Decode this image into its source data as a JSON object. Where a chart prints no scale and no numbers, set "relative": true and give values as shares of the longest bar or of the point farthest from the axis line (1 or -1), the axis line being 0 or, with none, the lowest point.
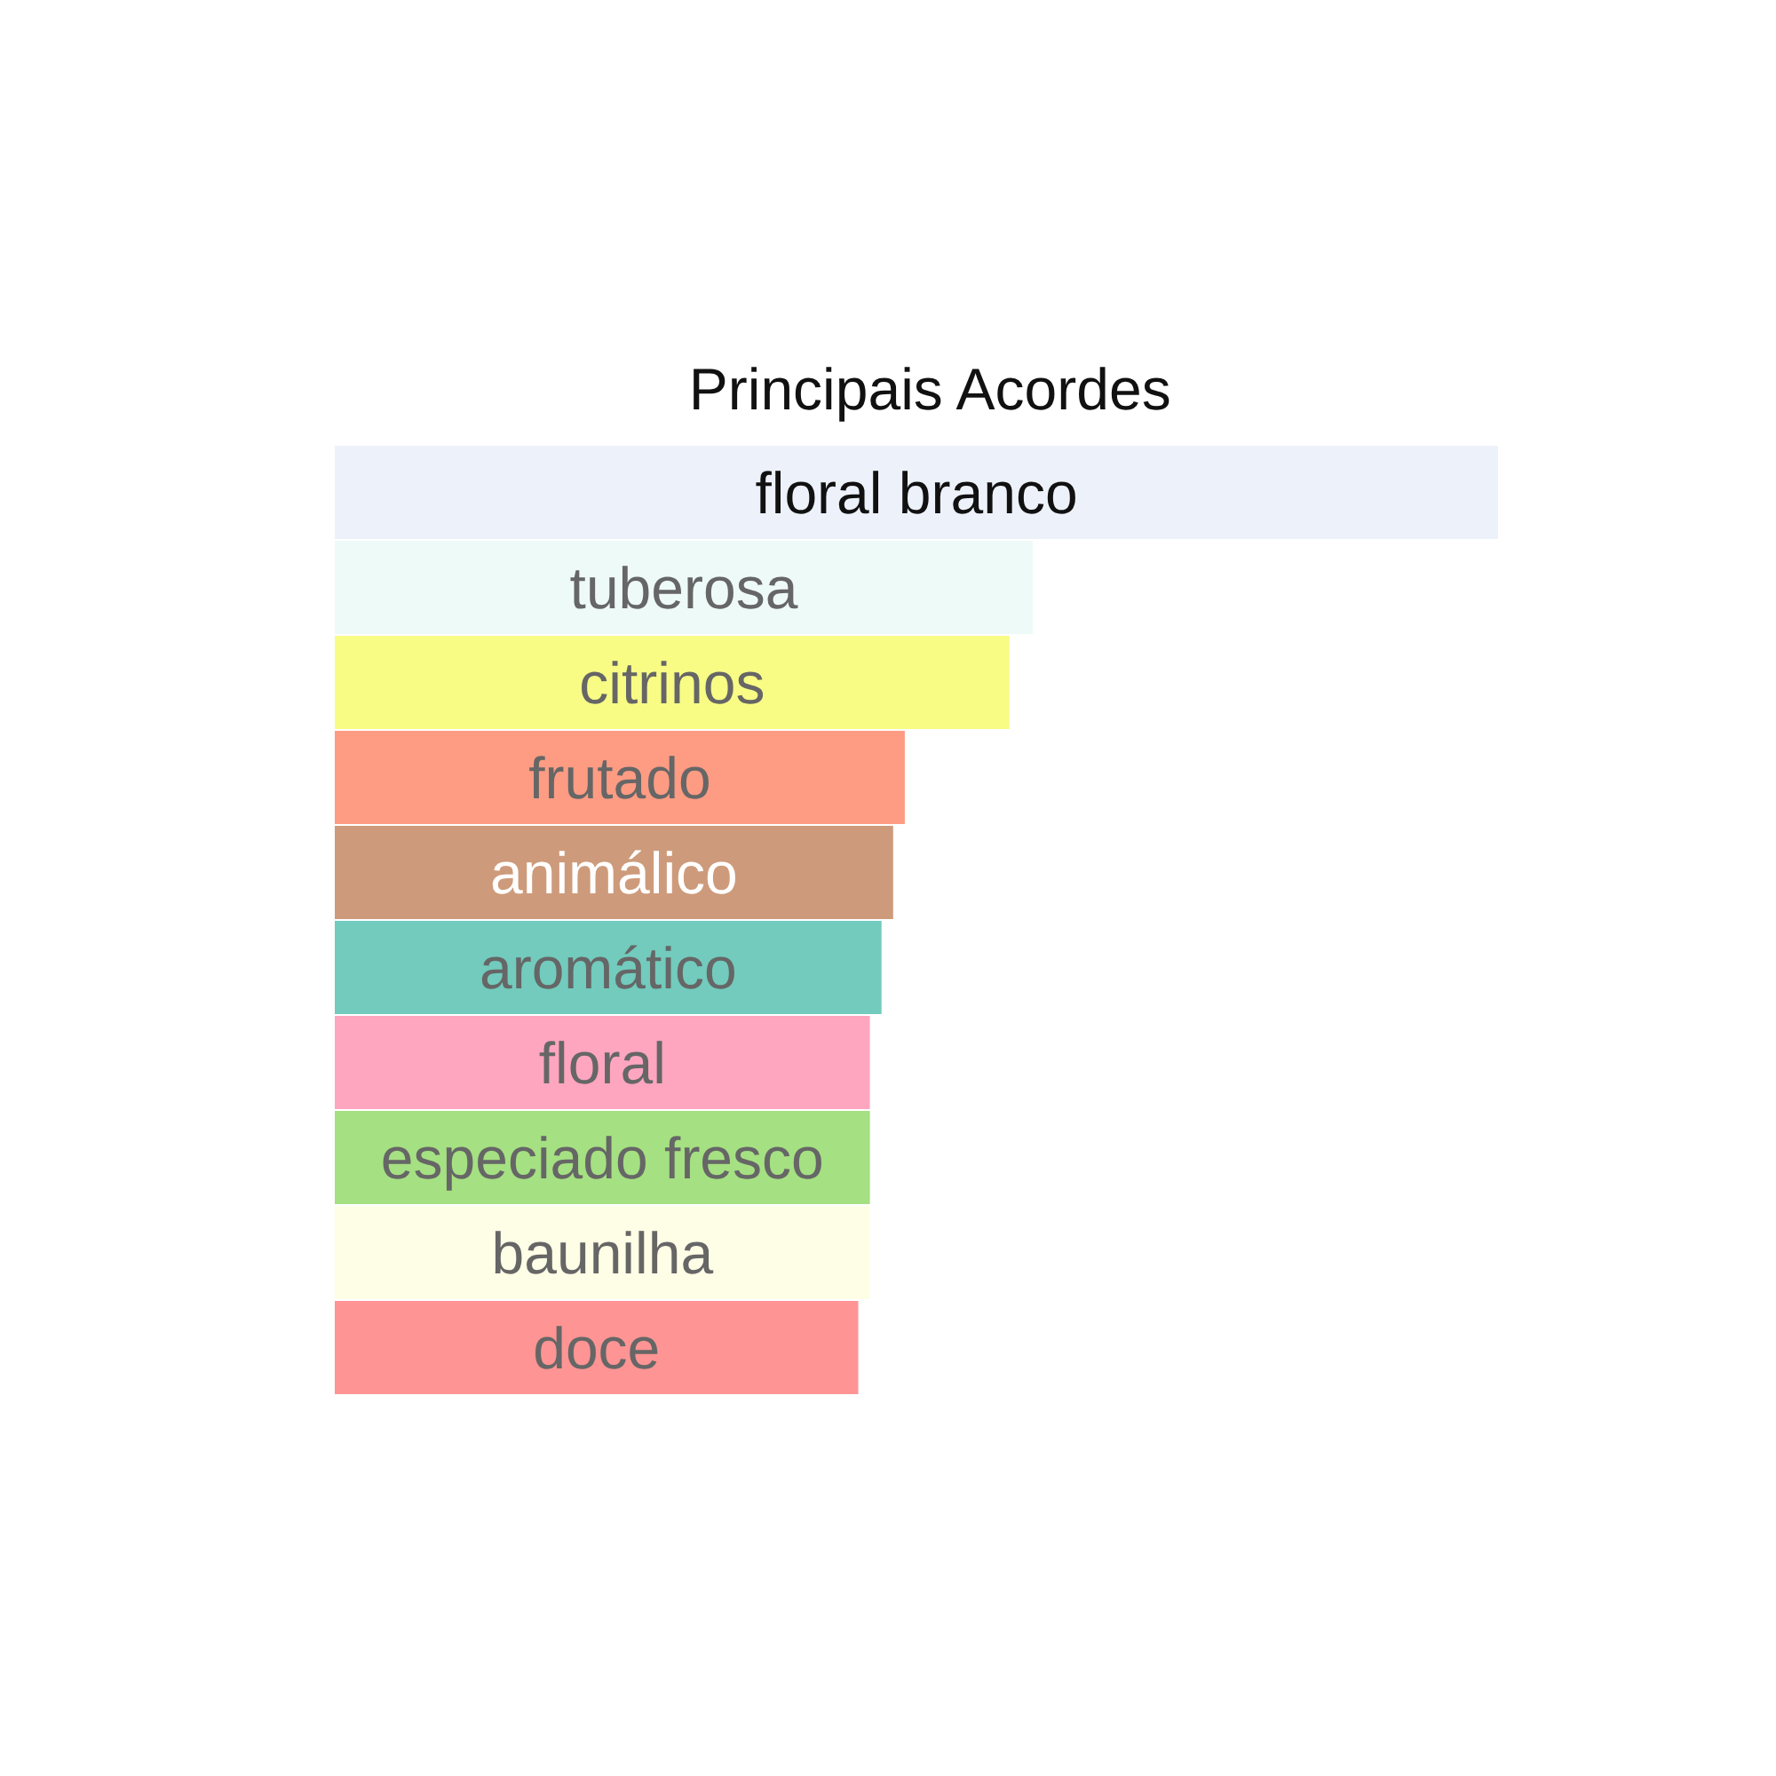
{
  "chart_data": {
    "type": "bar",
    "orientation": "horizontal",
    "relative": true,
    "title": "Principais Acordes",
    "categories": [
      "floral branco",
      "tuberosa",
      "citrinos",
      "frutado",
      "animálico",
      "aromático",
      "floral",
      "especiado fresco",
      "baunilha",
      "doce"
    ],
    "values": [
      1,
      0.6,
      0.58,
      0.49,
      0.48,
      0.47,
      0.46,
      0.46,
      0.46,
      0.45
    ],
    "colors": [
      "#edf2fa",
      "#eefaf7",
      "#f8fc85",
      "#fe9c83",
      "#cd9b7b",
      "#72cbbd",
      "#fea6c0",
      "#a5e082",
      "#fefde6",
      "#fe9494"
    ]
  }
}
